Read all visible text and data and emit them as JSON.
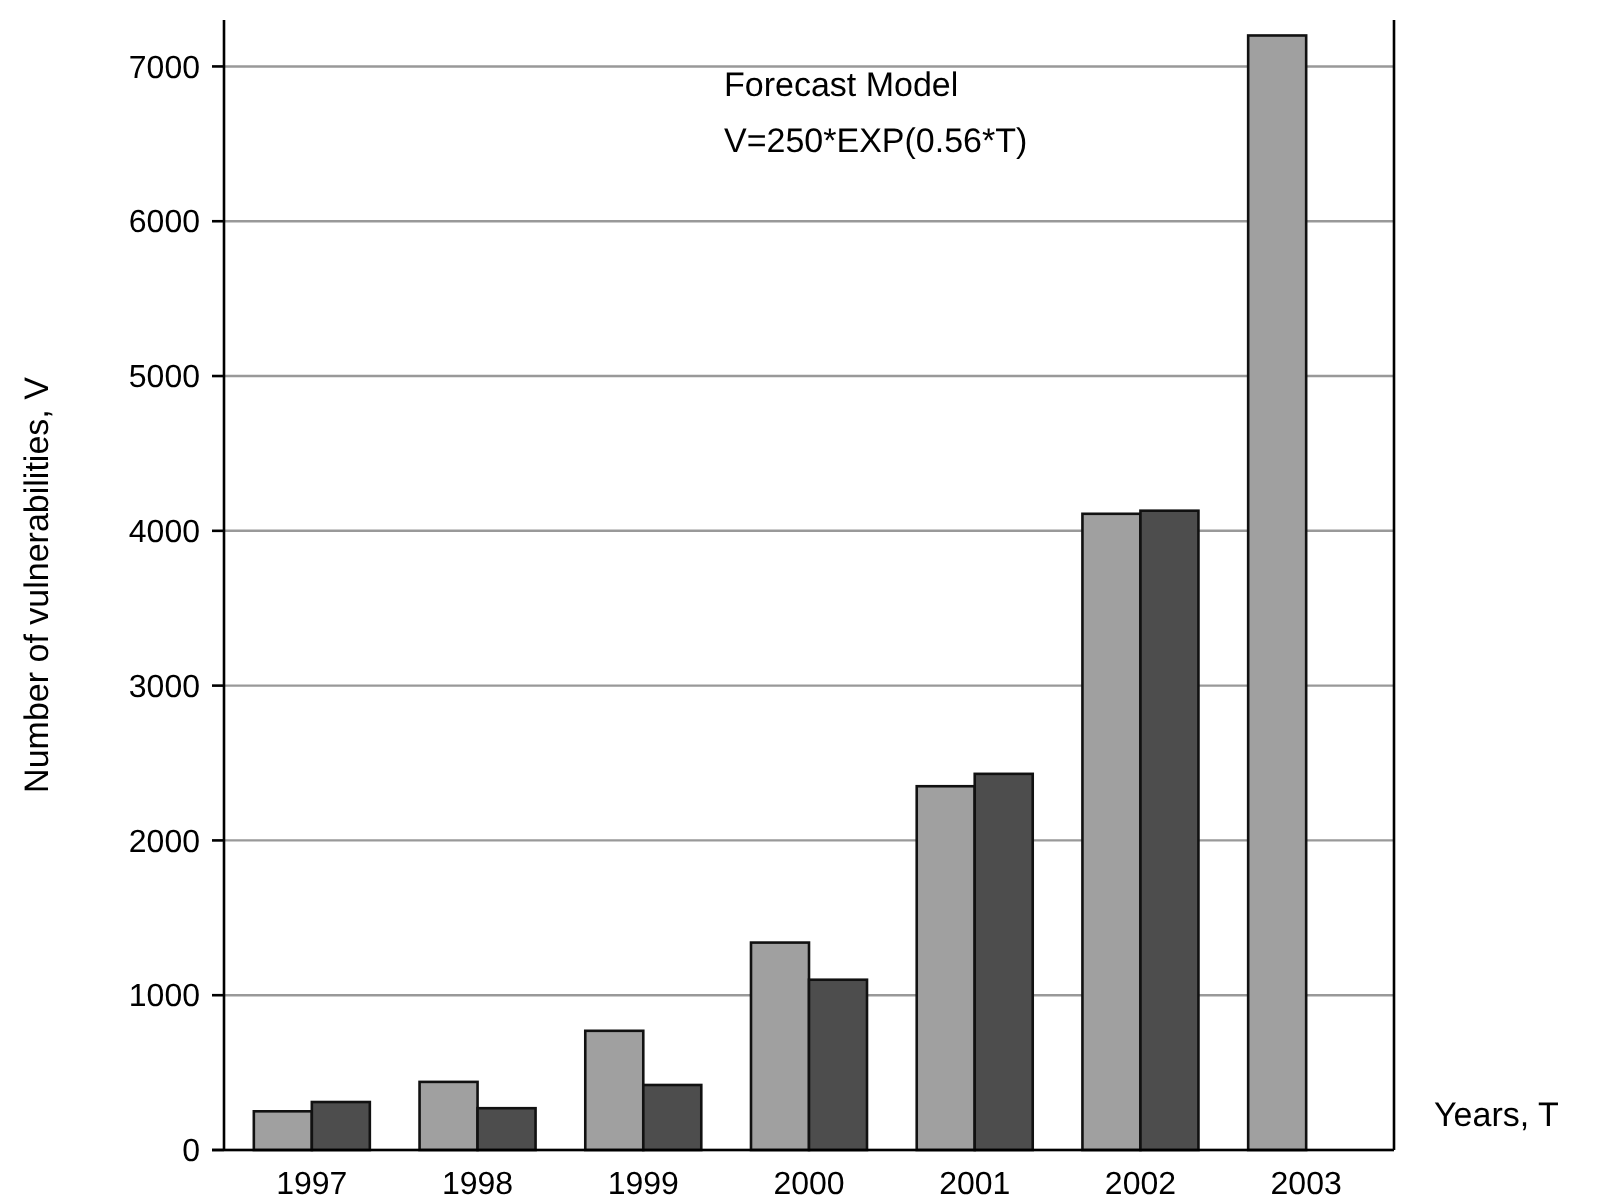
{
  "chart_data": {
    "type": "bar",
    "xlabel": "Years, T",
    "ylabel": "Number of vulnerabilities, V",
    "categories": [
      "1997",
      "1998",
      "1999",
      "2000",
      "2001",
      "2002",
      "2003"
    ],
    "series": [
      {
        "color": "#a0a0a0",
        "values": [
          250,
          440,
          770,
          1340,
          2350,
          4110,
          7200
        ]
      },
      {
        "color": "#4d4d4d",
        "values": [
          310,
          270,
          420,
          1100,
          2430,
          4130,
          null
        ]
      }
    ],
    "ylim": [
      0,
      7300
    ],
    "yticks": [
      0,
      1000,
      2000,
      3000,
      4000,
      5000,
      6000,
      7000
    ],
    "grid": "y",
    "annotations": [
      "Forecast Model",
      "V=250*EXP(0.56*T)"
    ]
  }
}
